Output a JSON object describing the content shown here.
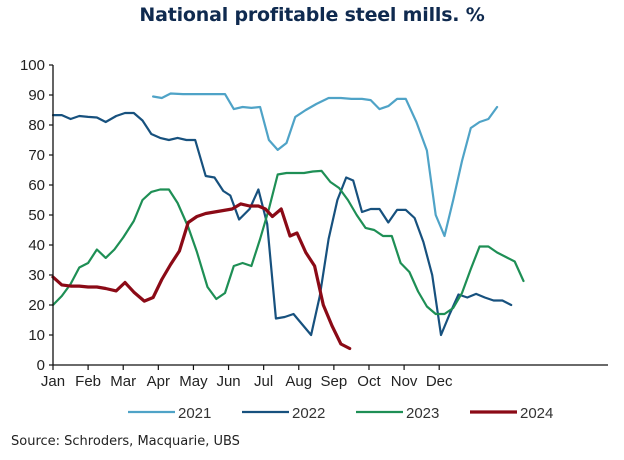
{
  "chart_data": {
    "type": "line",
    "title": "National profitable steel mills. %",
    "xlabel": "",
    "ylabel": "",
    "x_unit": "month position (0 = Jan, 11 = Dec)",
    "xlim": [
      0,
      11.8
    ],
    "ylim": [
      0,
      100
    ],
    "yticks": [
      0,
      10,
      20,
      30,
      40,
      50,
      60,
      70,
      80,
      90,
      100
    ],
    "ytick_labels": [
      "0",
      "10",
      "20",
      "30",
      "40",
      "50",
      "60",
      "70",
      "80",
      "90",
      "100"
    ],
    "categories": [
      "Jan",
      "Feb",
      "Mar",
      "Apr",
      "May",
      "Jun",
      "Jul",
      "Aug",
      "Sep",
      "Oct",
      "Nov",
      "Dec"
    ],
    "grid": false,
    "legend": "bottom",
    "source": "Source: Schroders, Macquarie, UBS",
    "series": [
      {
        "name": "2021",
        "color": "#4fa3c7",
        "points": [
          [
            2.85,
            89.5
          ],
          [
            3.1,
            89
          ],
          [
            3.35,
            90.5
          ],
          [
            3.7,
            90.3
          ],
          [
            4.2,
            90.3
          ],
          [
            4.7,
            90.3
          ],
          [
            4.9,
            90.3
          ],
          [
            5.15,
            85.3
          ],
          [
            5.4,
            86
          ],
          [
            5.65,
            85.7
          ],
          [
            5.9,
            86
          ],
          [
            6.15,
            75
          ],
          [
            6.4,
            71.7
          ],
          [
            6.65,
            74
          ],
          [
            6.9,
            82.7
          ],
          [
            7.2,
            85
          ],
          [
            7.5,
            87
          ],
          [
            7.85,
            89
          ],
          [
            8.2,
            89
          ],
          [
            8.5,
            88.7
          ],
          [
            8.8,
            88.7
          ],
          [
            9.05,
            88.3
          ],
          [
            9.3,
            85.3
          ],
          [
            9.55,
            86.3
          ],
          [
            9.8,
            88.7
          ],
          [
            10.05,
            88.7
          ],
          [
            10.35,
            81
          ],
          [
            10.65,
            71.5
          ],
          [
            10.9,
            50
          ],
          [
            11.15,
            43
          ],
          [
            11.4,
            55
          ],
          [
            11.65,
            68
          ],
          [
            11.9,
            79
          ],
          [
            12.15,
            81
          ],
          [
            12.4,
            82
          ],
          [
            12.65,
            86
          ]
        ]
      },
      {
        "name": "2022",
        "color": "#17517e",
        "points": [
          [
            0,
            83.3
          ],
          [
            0.25,
            83.3
          ],
          [
            0.5,
            82
          ],
          [
            0.75,
            83
          ],
          [
            1.0,
            82.7
          ],
          [
            1.25,
            82.5
          ],
          [
            1.5,
            81
          ],
          [
            1.8,
            83
          ],
          [
            2.05,
            84
          ],
          [
            2.3,
            84
          ],
          [
            2.55,
            81.5
          ],
          [
            2.8,
            77
          ],
          [
            3.05,
            75.7
          ],
          [
            3.3,
            75
          ],
          [
            3.55,
            75.7
          ],
          [
            3.8,
            75
          ],
          [
            4.05,
            75
          ],
          [
            4.35,
            63
          ],
          [
            4.6,
            62.5
          ],
          [
            4.85,
            58
          ],
          [
            5.05,
            56.5
          ],
          [
            5.3,
            48.5
          ],
          [
            5.6,
            52
          ],
          [
            5.85,
            58.5
          ],
          [
            6.1,
            47
          ],
          [
            6.35,
            15.5
          ],
          [
            6.6,
            16
          ],
          [
            6.85,
            17
          ],
          [
            7.1,
            13.5
          ],
          [
            7.35,
            10
          ],
          [
            7.6,
            23
          ],
          [
            7.85,
            42
          ],
          [
            8.1,
            55
          ],
          [
            8.35,
            62.5
          ],
          [
            8.55,
            61.5
          ],
          [
            8.8,
            51
          ],
          [
            9.05,
            52
          ],
          [
            9.3,
            52
          ],
          [
            9.55,
            47.5
          ],
          [
            9.8,
            51.7
          ],
          [
            10.05,
            51.7
          ],
          [
            10.3,
            49
          ],
          [
            10.55,
            41
          ],
          [
            10.8,
            30
          ],
          [
            11.05,
            10
          ],
          [
            11.3,
            17
          ],
          [
            11.55,
            23.5
          ],
          [
            11.8,
            22.5
          ],
          [
            12.05,
            23.7
          ],
          [
            12.3,
            22.5
          ],
          [
            12.55,
            21.5
          ],
          [
            12.8,
            21.5
          ],
          [
            13.05,
            20
          ]
        ]
      },
      {
        "name": "2023",
        "color": "#1e8f55",
        "points": [
          [
            0,
            20
          ],
          [
            0.25,
            23
          ],
          [
            0.5,
            27
          ],
          [
            0.75,
            32.5
          ],
          [
            1.0,
            34
          ],
          [
            1.25,
            38.5
          ],
          [
            1.5,
            35.7
          ],
          [
            1.75,
            38.5
          ],
          [
            2.0,
            42.5
          ],
          [
            2.3,
            48
          ],
          [
            2.55,
            55
          ],
          [
            2.8,
            57.7
          ],
          [
            3.05,
            58.5
          ],
          [
            3.3,
            58.5
          ],
          [
            3.55,
            54
          ],
          [
            3.85,
            46
          ],
          [
            4.1,
            37.7
          ],
          [
            4.4,
            26
          ],
          [
            4.65,
            22
          ],
          [
            4.9,
            24
          ],
          [
            5.15,
            33
          ],
          [
            5.4,
            34
          ],
          [
            5.65,
            33
          ],
          [
            5.9,
            42
          ],
          [
            6.15,
            52
          ],
          [
            6.4,
            63.5
          ],
          [
            6.65,
            64
          ],
          [
            6.9,
            64
          ],
          [
            7.15,
            64
          ],
          [
            7.4,
            64.5
          ],
          [
            7.65,
            64.7
          ],
          [
            7.9,
            61
          ],
          [
            8.15,
            59
          ],
          [
            8.4,
            55
          ],
          [
            8.65,
            50
          ],
          [
            8.9,
            45.7
          ],
          [
            9.15,
            45
          ],
          [
            9.4,
            43
          ],
          [
            9.65,
            43
          ],
          [
            9.9,
            34
          ],
          [
            10.15,
            31
          ],
          [
            10.4,
            24.5
          ],
          [
            10.65,
            19.5
          ],
          [
            10.9,
            17
          ],
          [
            11.15,
            17
          ],
          [
            11.4,
            19
          ],
          [
            11.65,
            24
          ],
          [
            11.9,
            32
          ],
          [
            12.15,
            39.5
          ],
          [
            12.4,
            39.5
          ],
          [
            12.65,
            37.5
          ],
          [
            12.9,
            36
          ],
          [
            13.15,
            34.5
          ],
          [
            13.4,
            28
          ]
        ]
      },
      {
        "name": "2024",
        "color": "#8b0a16",
        "points": [
          [
            0,
            29.3
          ],
          [
            0.25,
            26.7
          ],
          [
            0.5,
            26.3
          ],
          [
            0.75,
            26.3
          ],
          [
            1.0,
            26
          ],
          [
            1.25,
            26
          ],
          [
            1.5,
            25.5
          ],
          [
            1.8,
            24.7
          ],
          [
            2.05,
            27.5
          ],
          [
            2.3,
            24.3
          ],
          [
            2.6,
            21.3
          ],
          [
            2.85,
            22.5
          ],
          [
            3.1,
            28.5
          ],
          [
            3.35,
            33.5
          ],
          [
            3.6,
            38
          ],
          [
            3.85,
            47.5
          ],
          [
            4.1,
            49.5
          ],
          [
            4.35,
            50.5
          ],
          [
            4.6,
            51
          ],
          [
            4.85,
            51.5
          ],
          [
            5.1,
            52
          ],
          [
            5.35,
            53.7
          ],
          [
            5.6,
            53
          ],
          [
            5.85,
            53
          ],
          [
            6.05,
            52
          ],
          [
            6.25,
            49.5
          ],
          [
            6.5,
            52
          ],
          [
            6.75,
            43
          ],
          [
            6.95,
            44
          ],
          [
            7.2,
            37.5
          ],
          [
            7.45,
            33
          ],
          [
            7.7,
            20
          ],
          [
            7.95,
            13
          ],
          [
            8.2,
            7
          ],
          [
            8.45,
            5.5
          ]
        ]
      }
    ]
  }
}
